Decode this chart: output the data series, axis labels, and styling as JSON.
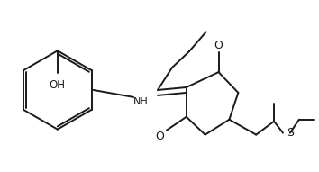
{
  "bg_color": "#ffffff",
  "line_color": "#1a1a1a",
  "line_width": 1.4,
  "figsize": [
    3.54,
    1.91
  ],
  "dpi": 100,
  "xlim": [
    0,
    354
  ],
  "ylim": [
    0,
    191
  ]
}
